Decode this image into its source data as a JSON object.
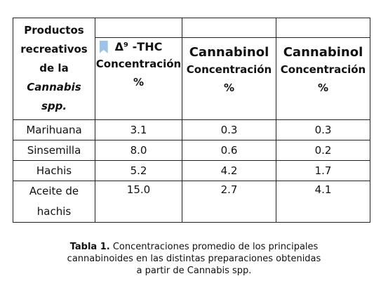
{
  "table": {
    "header": {
      "product_label_lines": [
        "Productos",
        "recreativos",
        "de la"
      ],
      "product_label_italic": [
        "Cannabis",
        "spp."
      ],
      "col1": {
        "title": "Δ⁹ -THC",
        "sub": "Concentración",
        "unit": "%"
      },
      "col2": {
        "title": "Cannabinol",
        "sub": "Concentración",
        "unit": "%"
      },
      "col3": {
        "title": "Cannabinol",
        "sub": "Concentración",
        "unit": "%"
      }
    },
    "rows": [
      {
        "product": "Marihuana",
        "thc": "3.1",
        "cbn1": "0.3",
        "cbn2": "0.3"
      },
      {
        "product": "Sinsemilla",
        "thc": "8.0",
        "cbn1": "0.6",
        "cbn2": "0.2"
      },
      {
        "product": "Hachis",
        "thc": "5.2",
        "cbn1": "4.2",
        "cbn2": "1.7"
      },
      {
        "product_line1": "Aceite de",
        "product_line2": "hachis",
        "thc": "15.0",
        "cbn1": "2.7",
        "cbn2": "4.1"
      }
    ],
    "colors": {
      "border": "#222222",
      "flag": "#9fc2e6"
    }
  },
  "caption": {
    "label": "Tabla 1.",
    "line1": " Concentraciones promedio de los principales",
    "line2": "cannabinoides en las distintas preparaciones obtenidas",
    "line3": "a partir de Cannabis spp."
  }
}
